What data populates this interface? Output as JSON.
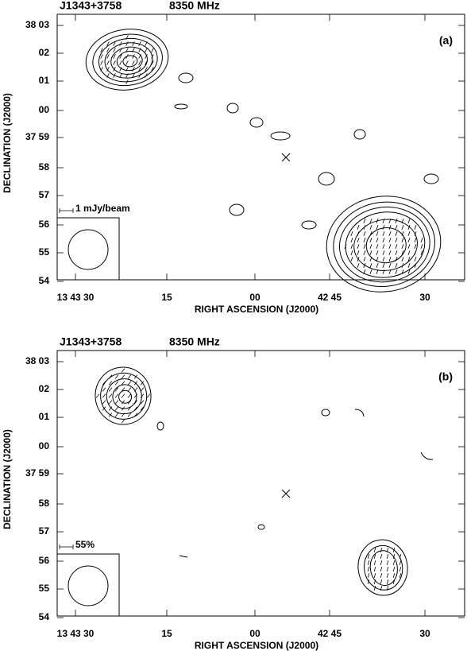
{
  "panels": [
    {
      "source": "J1343+3758",
      "frequency": "8350 MHz",
      "label": "(a)",
      "scale_label": "1 mJy/beam",
      "y_ticks": [
        "38 03",
        "02",
        "01",
        "00",
        "37 59",
        "58",
        "57",
        "56",
        "55",
        "54"
      ],
      "x_ticks": [
        "13 43 30",
        "15",
        "00",
        "42 45",
        "30"
      ],
      "x_axis_label": "RIGHT ASCENSION (J2000)",
      "y_axis_label": "DECLINATION (J2000)"
    },
    {
      "source": "J1343+3758",
      "frequency": "8350 MHz",
      "label": "(b)",
      "scale_label": "55%",
      "y_ticks": [
        "38 03",
        "02",
        "01",
        "00",
        "37 59",
        "58",
        "57",
        "56",
        "55",
        "54"
      ],
      "x_ticks": [
        "13 43 30",
        "15",
        "00",
        "42 45",
        "30"
      ],
      "x_axis_label": "RIGHT ASCENSION (J2000)",
      "y_axis_label": "DECLINATION (J2000)"
    }
  ]
}
